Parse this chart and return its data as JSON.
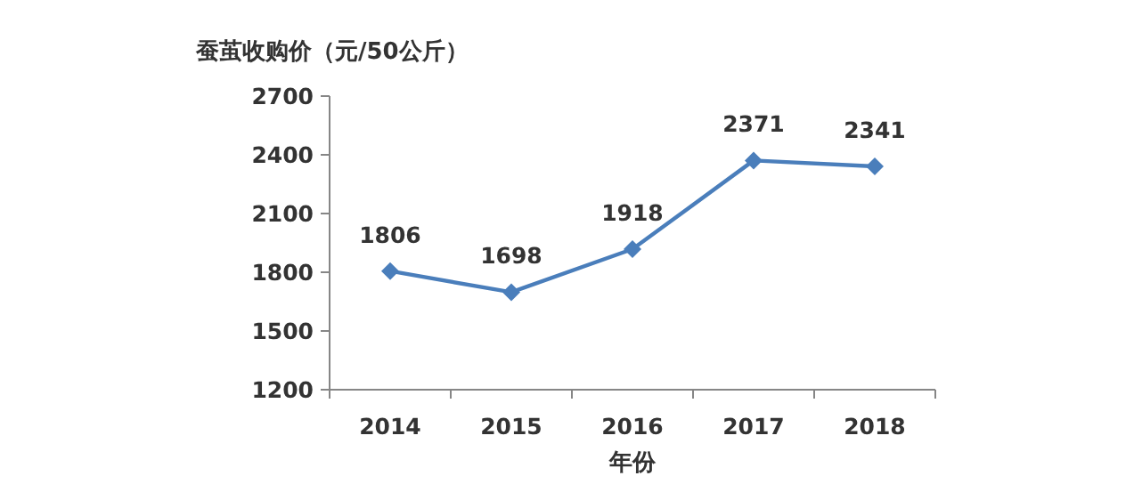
{
  "chart_data": {
    "type": "line",
    "ylabel": "蚕茧收购价（元/50公斤）",
    "xlabel": "年份",
    "categories": [
      "2014",
      "2015",
      "2016",
      "2017",
      "2018"
    ],
    "series": [
      {
        "color": "#4a7ebb",
        "values": [
          1806,
          1698,
          1918,
          2371,
          2341
        ]
      }
    ],
    "ylim": [
      1200,
      2700
    ],
    "yticks": [
      1200,
      1500,
      1800,
      2100,
      2400,
      2700
    ],
    "data_labels": true,
    "marker": "diamond",
    "line_style": "solid"
  }
}
